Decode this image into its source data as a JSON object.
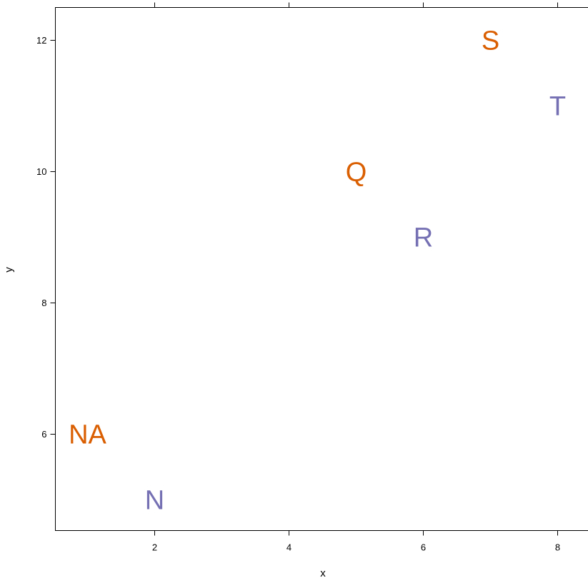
{
  "chart_data": {
    "type": "scatter",
    "title": "",
    "xlabel": "x",
    "ylabel": "y",
    "xlim": [
      0.5,
      8.5
    ],
    "ylim": [
      4.5,
      12.5
    ],
    "x_ticks": [
      2,
      4,
      6,
      8
    ],
    "y_ticks": [
      6,
      8,
      10,
      12
    ],
    "x_tick_labels": [
      "2",
      "4",
      "6",
      "8"
    ],
    "y_tick_labels": [
      "6",
      "8",
      "10",
      "12"
    ],
    "grid": false,
    "points": [
      {
        "label": "NA",
        "x": 1,
        "y": 6,
        "color": "#d95f02"
      },
      {
        "label": "N",
        "x": 2,
        "y": 5,
        "color": "#7570b3"
      },
      {
        "label": "Q",
        "x": 5,
        "y": 10,
        "color": "#d95f02"
      },
      {
        "label": "R",
        "x": 6,
        "y": 9,
        "color": "#7570b3"
      },
      {
        "label": "S",
        "x": 7,
        "y": 12,
        "color": "#d95f02"
      },
      {
        "label": "T",
        "x": 8,
        "y": 11,
        "color": "#7570b3"
      }
    ]
  }
}
